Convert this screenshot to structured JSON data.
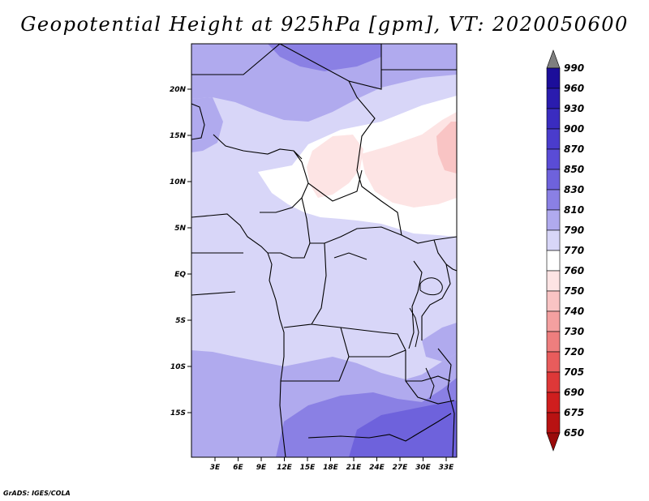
{
  "title": "Geopotential Height at 925hPa [gpm], VT: 2020050600",
  "credit": "GrADS: IGES/COLA",
  "map": {
    "lat_labels": [
      "20N",
      "15N",
      "10N",
      "5N",
      "EQ",
      "5S",
      "10S",
      "15S"
    ],
    "lon_labels": [
      "3E",
      "6E",
      "9E",
      "12E",
      "15E",
      "18E",
      "21E",
      "24E",
      "27E",
      "30E",
      "33E"
    ]
  },
  "colorbar": {
    "levels": [
      "990",
      "960",
      "930",
      "900",
      "870",
      "850",
      "830",
      "810",
      "790",
      "770",
      "760",
      "750",
      "740",
      "730",
      "720",
      "705",
      "690",
      "675",
      "650"
    ],
    "colors": [
      "#7f7f7f",
      "#1c0e9a",
      "#2a1cae",
      "#3a2cc0",
      "#4a3ccc",
      "#5a4cd6",
      "#6e62dc",
      "#8a80e4",
      "#b0aaee",
      "#d8d6f8",
      "#ffffff",
      "#fde4e4",
      "#f9c4c4",
      "#f4a0a0",
      "#ee7e7e",
      "#e85c5c",
      "#de3838",
      "#cf1e1e",
      "#b81212",
      "#9a0a0a"
    ]
  }
}
